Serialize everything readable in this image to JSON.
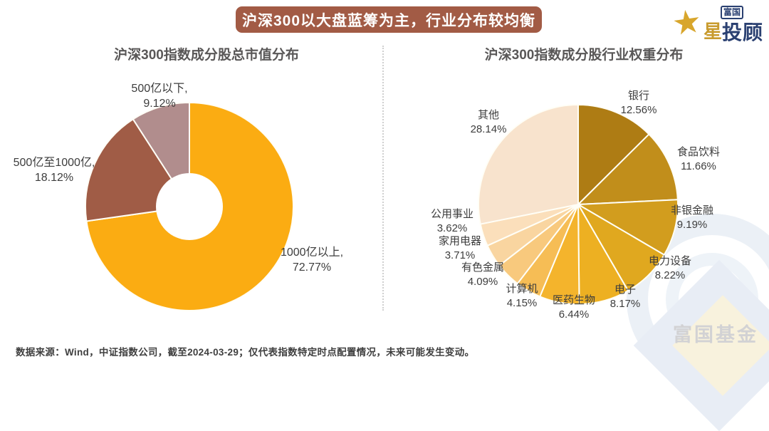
{
  "banner": {
    "title": "沪深300以大盘蓝筹为主，行业分布较均衡",
    "bg_color": "#a25b45",
    "text_color": "#ffffff"
  },
  "logo": {
    "star_icon": "star",
    "badge_text": "富国",
    "gold_char": "星",
    "main_text": "投顾",
    "navy_color": "#2a4071",
    "gold_color": "#d8a62c"
  },
  "watermark": {
    "text": "富国基金"
  },
  "footer": {
    "source_text": "数据来源：Wind，中证指数公司，截至2024-03-29；仅代表指数特定时点配置情况，未来可能发生变动。"
  },
  "chart_data": [
    {
      "type": "pie",
      "subtype": "donut",
      "title": "沪深300指数成分股总市值分布",
      "start_angle_deg": 0,
      "direction": "clockwise",
      "labels_position": "outside",
      "segments": [
        {
          "label": "1000亿以上",
          "value": 72.77,
          "name_display": "1000亿以上,",
          "pct_display": "72.77%",
          "color": "#fbac12"
        },
        {
          "label": "500亿至1000亿",
          "value": 18.12,
          "name_display": "500亿至1000亿,",
          "pct_display": "18.12%",
          "color": "#a05c46"
        },
        {
          "label": "500亿以下",
          "value": 9.12,
          "name_display": "500亿以下,",
          "pct_display": "9.12%",
          "color": "#b18d8d"
        }
      ]
    },
    {
      "type": "pie",
      "subtype": "pie",
      "title": "沪深300指数成分股行业权重分布",
      "start_angle_deg": 0,
      "direction": "clockwise",
      "labels_position": "outside",
      "segments": [
        {
          "label": "银行",
          "value": 12.56,
          "name_display": "银行",
          "pct_display": "12.56%",
          "color": "#ae7c14"
        },
        {
          "label": "食品饮料",
          "value": 11.66,
          "name_display": "食品饮料",
          "pct_display": "11.66%",
          "color": "#c18e1b"
        },
        {
          "label": "非银金融",
          "value": 9.19,
          "name_display": "非银金融",
          "pct_display": "9.19%",
          "color": "#d29d1e"
        },
        {
          "label": "电力设备",
          "value": 8.22,
          "name_display": "电力设备",
          "pct_display": "8.22%",
          "color": "#e0a81f"
        },
        {
          "label": "电子",
          "value": 8.17,
          "name_display": "电子",
          "pct_display": "8.17%",
          "color": "#edb022"
        },
        {
          "label": "医药生物",
          "value": 6.44,
          "name_display": "医药生物",
          "pct_display": "6.44%",
          "color": "#f4b42c"
        },
        {
          "label": "计算机",
          "value": 4.15,
          "name_display": "计算机",
          "pct_display": "4.15%",
          "color": "#f6bd55"
        },
        {
          "label": "有色金属",
          "value": 4.09,
          "name_display": "有色金属",
          "pct_display": "4.09%",
          "color": "#f8c97d"
        },
        {
          "label": "家用电器",
          "value": 3.71,
          "name_display": "家用电器",
          "pct_display": "3.71%",
          "color": "#f9d5a0"
        },
        {
          "label": "公用事业",
          "value": 3.62,
          "name_display": "公用事业",
          "pct_display": "3.62%",
          "color": "#fbdfbb"
        },
        {
          "label": "其他",
          "value": 28.14,
          "name_display": "其他",
          "pct_display": "28.14%",
          "color": "#f8e3cd"
        }
      ]
    }
  ]
}
